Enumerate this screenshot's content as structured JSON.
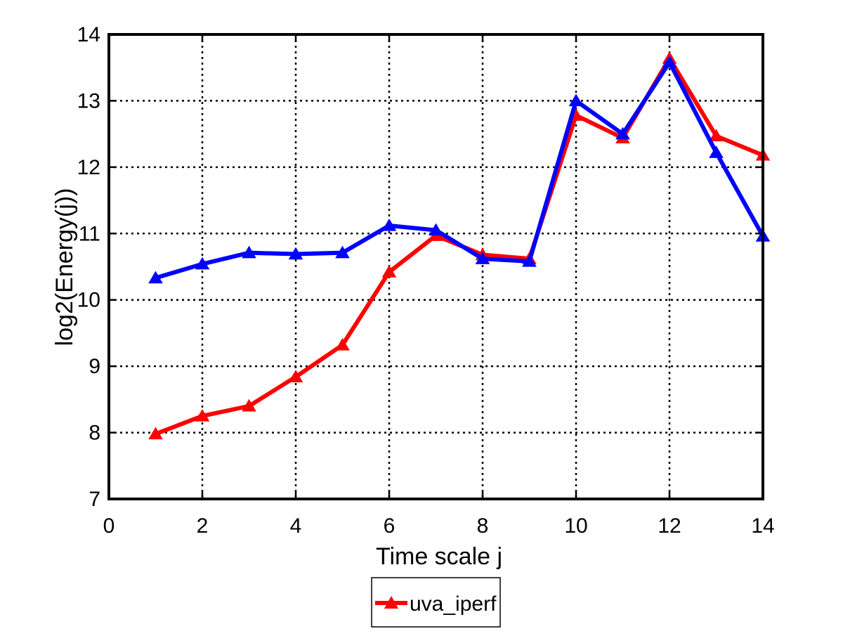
{
  "chart_data": {
    "type": "line",
    "title": "",
    "xlabel": "Time scale j",
    "ylabel": "log2(Energy(j))",
    "xlim": [
      0,
      14
    ],
    "ylim": [
      7,
      14
    ],
    "xticks": [
      0,
      2,
      4,
      6,
      8,
      10,
      12,
      14
    ],
    "yticks": [
      7,
      8,
      9,
      10,
      11,
      12,
      13,
      14
    ],
    "grid": true,
    "legend_position": "bottom-center, outside plot",
    "series": [
      {
        "name": "uva_iperf",
        "color": "#ff0000",
        "marker": "triangle",
        "in_legend": true,
        "x": [
          1,
          2,
          3,
          4,
          5,
          6,
          7,
          8,
          9,
          10,
          11,
          12,
          13,
          14
        ],
        "y": [
          7.98,
          8.25,
          8.4,
          8.84,
          9.32,
          10.42,
          10.97,
          10.68,
          10.62,
          12.78,
          12.44,
          13.64,
          12.47,
          12.18
        ]
      },
      {
        "color": "#0000ff",
        "marker": "triangle",
        "in_legend": false,
        "x": [
          1,
          2,
          3,
          4,
          5,
          6,
          7,
          8,
          9,
          10,
          11,
          12,
          13,
          14
        ],
        "y": [
          10.33,
          10.54,
          10.71,
          10.69,
          10.71,
          11.12,
          11.05,
          10.62,
          10.58,
          13.0,
          12.5,
          13.58,
          12.22,
          10.96
        ]
      }
    ]
  }
}
